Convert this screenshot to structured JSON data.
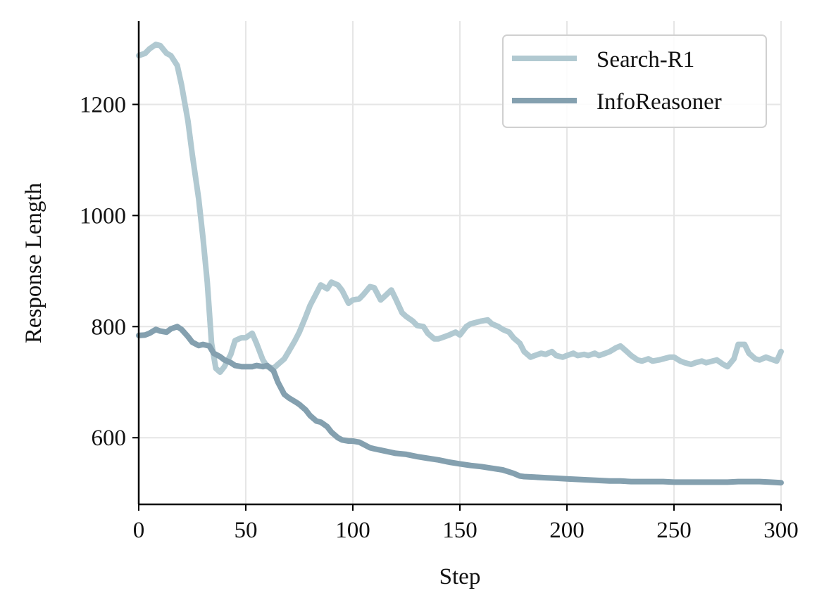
{
  "chart_data": {
    "type": "line",
    "title": "",
    "xlabel": "Step",
    "ylabel": "Response Length",
    "xlim": [
      0,
      300
    ],
    "ylim": [
      480,
      1350
    ],
    "xticks": [
      0,
      50,
      100,
      150,
      200,
      250,
      300
    ],
    "yticks": [
      600,
      800,
      1000,
      1200
    ],
    "grid": true,
    "legend_position": "top-right",
    "series": [
      {
        "name": "Search-R1",
        "color": "#b1c9d1",
        "x": [
          0,
          3,
          5,
          8,
          10,
          13,
          15,
          18,
          20,
          23,
          25,
          28,
          30,
          32,
          34,
          36,
          38,
          40,
          43,
          45,
          48,
          50,
          53,
          55,
          58,
          60,
          63,
          65,
          68,
          70,
          73,
          75,
          78,
          80,
          83,
          85,
          88,
          90,
          93,
          95,
          98,
          100,
          103,
          105,
          108,
          110,
          113,
          115,
          118,
          120,
          123,
          125,
          128,
          130,
          133,
          135,
          138,
          140,
          143,
          145,
          148,
          150,
          153,
          155,
          158,
          160,
          163,
          165,
          168,
          170,
          173,
          175,
          178,
          180,
          183,
          185,
          188,
          190,
          193,
          195,
          198,
          200,
          203,
          205,
          208,
          210,
          213,
          215,
          218,
          220,
          223,
          225,
          228,
          230,
          233,
          235,
          238,
          240,
          243,
          245,
          248,
          250,
          253,
          255,
          258,
          260,
          263,
          265,
          268,
          270,
          273,
          275,
          278,
          280,
          283,
          285,
          288,
          290,
          293,
          295,
          298,
          300
        ],
        "y": [
          1288,
          1292,
          1300,
          1308,
          1306,
          1292,
          1288,
          1270,
          1235,
          1170,
          1110,
          1030,
          960,
          880,
          770,
          725,
          718,
          728,
          750,
          775,
          780,
          780,
          788,
          770,
          740,
          728,
          725,
          732,
          742,
          755,
          775,
          790,
          818,
          838,
          860,
          875,
          868,
          880,
          875,
          865,
          842,
          848,
          850,
          858,
          872,
          870,
          848,
          855,
          866,
          850,
          825,
          818,
          810,
          802,
          800,
          788,
          778,
          778,
          782,
          785,
          790,
          785,
          800,
          805,
          808,
          810,
          812,
          805,
          800,
          795,
          790,
          780,
          770,
          755,
          745,
          748,
          752,
          750,
          755,
          748,
          745,
          748,
          752,
          748,
          750,
          748,
          752,
          748,
          752,
          755,
          762,
          765,
          755,
          748,
          740,
          738,
          742,
          738,
          740,
          742,
          745,
          745,
          738,
          735,
          732,
          735,
          738,
          735,
          738,
          740,
          732,
          728,
          742,
          768,
          768,
          752,
          742,
          740,
          745,
          742,
          738,
          755
        ]
      },
      {
        "name": "InfoReasoner",
        "color": "#84a0af",
        "x": [
          0,
          3,
          5,
          8,
          10,
          13,
          15,
          18,
          20,
          23,
          25,
          28,
          30,
          33,
          35,
          38,
          40,
          43,
          45,
          48,
          50,
          53,
          55,
          58,
          60,
          63,
          65,
          68,
          70,
          73,
          75,
          78,
          80,
          83,
          85,
          88,
          90,
          93,
          95,
          98,
          100,
          103,
          105,
          108,
          110,
          115,
          120,
          125,
          130,
          135,
          140,
          145,
          150,
          155,
          160,
          165,
          170,
          175,
          178,
          180,
          185,
          190,
          195,
          200,
          205,
          210,
          215,
          220,
          225,
          230,
          235,
          240,
          245,
          250,
          255,
          260,
          265,
          270,
          275,
          280,
          285,
          290,
          295,
          300
        ],
        "y": [
          784,
          785,
          788,
          795,
          792,
          790,
          796,
          800,
          795,
          782,
          772,
          766,
          768,
          765,
          752,
          746,
          740,
          735,
          730,
          728,
          728,
          728,
          730,
          728,
          730,
          720,
          700,
          678,
          672,
          665,
          660,
          650,
          640,
          630,
          628,
          620,
          610,
          600,
          596,
          594,
          594,
          592,
          588,
          582,
          580,
          576,
          572,
          570,
          566,
          563,
          560,
          556,
          553,
          550,
          548,
          545,
          542,
          536,
          531,
          530,
          529,
          528,
          527,
          526,
          525,
          524,
          523,
          522,
          522,
          521,
          521,
          521,
          521,
          520,
          520,
          520,
          520,
          520,
          520,
          521,
          521,
          521,
          520,
          519
        ]
      }
    ]
  }
}
